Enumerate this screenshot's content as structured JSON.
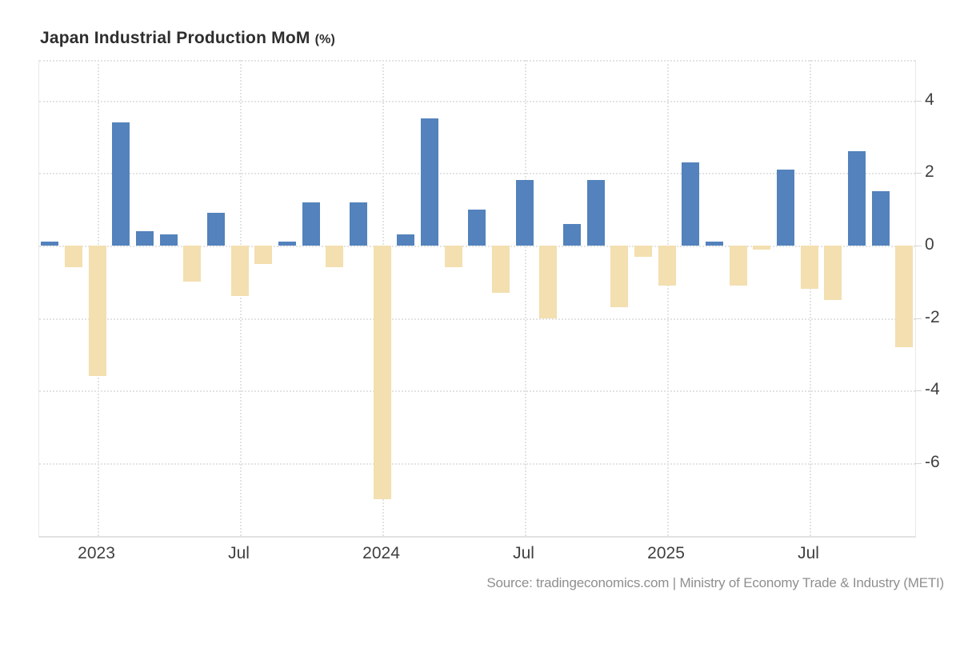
{
  "title": {
    "main": "Japan Industrial Production MoM",
    "unit": "(%)"
  },
  "source_note": "Source: tradingeconomics.com | Ministry of Economy Trade & Industry (METI)",
  "colors": {
    "positive_bar": "#5382bc",
    "negative_bar": "#f3dfb0",
    "gridline": "#e4e4e4",
    "axis_text": "#3f3f3f",
    "title_text": "#2e2e2e",
    "source_text": "#8f8f8f"
  },
  "chart_data": {
    "type": "bar",
    "title": "Japan Industrial Production MoM (%)",
    "xlabel": "",
    "ylabel": "",
    "legend": "none",
    "grid": true,
    "ylim": [
      -8,
      5.1
    ],
    "y_ticks": [
      4,
      2,
      0,
      -2,
      -4,
      -6
    ],
    "x_axis_labels": [
      {
        "label": "2023",
        "month_index": 2
      },
      {
        "label": "Jul",
        "month_index": 8
      },
      {
        "label": "2024",
        "month_index": 14
      },
      {
        "label": "Jul",
        "month_index": 20
      },
      {
        "label": "2025",
        "month_index": 26
      },
      {
        "label": "Jul",
        "month_index": 32
      }
    ],
    "categories": [
      "Nov 2022",
      "Dec 2022",
      "Jan 2023",
      "Feb 2023",
      "Mar 2023",
      "Apr 2023",
      "May 2023",
      "Jun 2023",
      "Jul 2023",
      "Aug 2023",
      "Sep 2023",
      "Oct 2023",
      "Nov 2023",
      "Dec 2023",
      "Jan 2024",
      "Feb 2024",
      "Mar 2024",
      "Apr 2024",
      "May 2024",
      "Jun 2024",
      "Jul 2024",
      "Aug 2024",
      "Sep 2024",
      "Oct 2024",
      "Nov 2024",
      "Dec 2024",
      "Jan 2025",
      "Feb 2025",
      "Mar 2025",
      "Apr 2025",
      "May 2025",
      "Jun 2025",
      "Jul 2025",
      "Aug 2025",
      "Sep 2025",
      "Oct 2025",
      "Nov 2025"
    ],
    "values": [
      0.1,
      -0.6,
      -3.6,
      3.4,
      0.4,
      0.3,
      -1.0,
      0.9,
      -1.4,
      -0.5,
      0.1,
      1.2,
      -0.6,
      1.2,
      -7.0,
      0.3,
      3.5,
      -0.6,
      1.0,
      -1.3,
      1.8,
      -2.0,
      0.6,
      1.8,
      -1.7,
      -0.3,
      -1.1,
      2.3,
      0.1,
      -1.1,
      -0.1,
      2.1,
      -1.2,
      -1.5,
      2.6,
      1.5,
      -2.8
    ]
  }
}
